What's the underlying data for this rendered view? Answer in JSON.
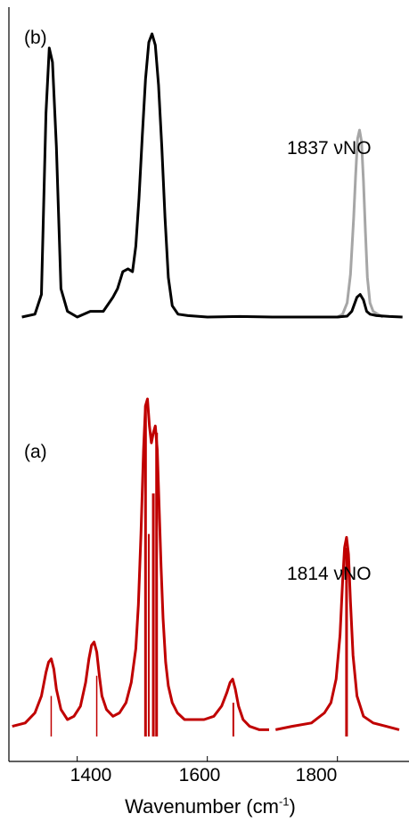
{
  "chart_data": [
    {
      "panel": "b",
      "type": "line",
      "panel_label": "(b)",
      "annotation": "1837 νNO",
      "xlabel_parts": [
        "Wavenumber (cm",
        "-1",
        ")"
      ],
      "xlim": [
        1295,
        1910
      ],
      "x_ticks": [
        1400,
        1600,
        1800
      ],
      "colors": {
        "main": "#000000",
        "overlay": "#a6a6a6"
      },
      "series": [
        {
          "role": "main",
          "x": [
            1315,
            1335,
            1345,
            1352,
            1357,
            1362,
            1368,
            1375,
            1385,
            1400,
            1420,
            1440,
            1455,
            1462,
            1470,
            1478,
            1485,
            1490,
            1495,
            1500,
            1505,
            1510,
            1515,
            1520,
            1525,
            1530,
            1535,
            1540,
            1546,
            1555,
            1570,
            1600,
            1650,
            1700,
            1750,
            1800,
            1815,
            1822,
            1830,
            1835,
            1840,
            1845,
            1850,
            1860,
            1880,
            1900
          ],
          "y": [
            0,
            0.01,
            0.08,
            0.72,
            0.95,
            0.9,
            0.6,
            0.1,
            0.02,
            0.0,
            0.02,
            0.02,
            0.07,
            0.1,
            0.16,
            0.17,
            0.16,
            0.25,
            0.42,
            0.64,
            0.84,
            0.97,
            1.0,
            0.96,
            0.82,
            0.6,
            0.35,
            0.14,
            0.04,
            0.01,
            0.005,
            0.0,
            0.002,
            0.0,
            0.0,
            0.0,
            0.003,
            0.02,
            0.07,
            0.08,
            0.06,
            0.02,
            0.01,
            0.005,
            0.002,
            0
          ]
        },
        {
          "role": "overlay",
          "x": [
            1800,
            1808,
            1815,
            1820,
            1825,
            1828,
            1831,
            1834,
            1837,
            1840,
            1843,
            1846,
            1850,
            1855,
            1862,
            1870
          ],
          "y": [
            0.0,
            0.01,
            0.05,
            0.15,
            0.35,
            0.5,
            0.63,
            0.66,
            0.62,
            0.48,
            0.3,
            0.14,
            0.05,
            0.02,
            0.01,
            0.0
          ]
        }
      ]
    },
    {
      "panel": "a",
      "type": "line",
      "panel_label": "(a)",
      "annotation": "1814 νNO",
      "xlim": [
        1295,
        1910
      ],
      "colors": {
        "main": "#c00000",
        "sticks": "#c00000"
      },
      "series": [
        {
          "role": "spectrum",
          "x": [
            1300,
            1320,
            1335,
            1345,
            1352,
            1356,
            1360,
            1364,
            1368,
            1375,
            1385,
            1395,
            1405,
            1413,
            1418,
            1422,
            1426,
            1430,
            1434,
            1438,
            1445,
            1455,
            1465,
            1475,
            1483,
            1490,
            1494,
            1498,
            1502,
            1505,
            1508,
            1511,
            1514,
            1517,
            1520,
            1523,
            1526,
            1529,
            1532,
            1536,
            1540,
            1546,
            1554,
            1565,
            1580,
            1595,
            1610,
            1622,
            1630,
            1635,
            1639,
            1643,
            1648,
            1655,
            1665,
            1680,
            1695
          ],
          "y": [
            0.03,
            0.04,
            0.07,
            0.12,
            0.19,
            0.22,
            0.23,
            0.2,
            0.14,
            0.08,
            0.05,
            0.06,
            0.09,
            0.16,
            0.23,
            0.27,
            0.28,
            0.25,
            0.18,
            0.12,
            0.08,
            0.06,
            0.07,
            0.1,
            0.16,
            0.26,
            0.39,
            0.6,
            0.85,
            0.98,
            1.0,
            0.92,
            0.87,
            0.9,
            0.92,
            0.85,
            0.68,
            0.5,
            0.35,
            0.22,
            0.15,
            0.1,
            0.07,
            0.05,
            0.05,
            0.05,
            0.06,
            0.09,
            0.13,
            0.16,
            0.17,
            0.14,
            0.09,
            0.05,
            0.03,
            0.02,
            0.02
          ]
        },
        {
          "role": "spectrum",
          "x": [
            1705,
            1730,
            1760,
            1780,
            1790,
            1798,
            1804,
            1808,
            1811,
            1814,
            1817,
            1820,
            1824,
            1830,
            1840,
            1855,
            1875,
            1895
          ],
          "y": [
            0.02,
            0.03,
            0.04,
            0.07,
            0.1,
            0.17,
            0.3,
            0.46,
            0.56,
            0.59,
            0.54,
            0.4,
            0.24,
            0.12,
            0.06,
            0.04,
            0.03,
            0.02
          ]
        }
      ],
      "sticks": [
        {
          "x": 1360,
          "y": 0.12,
          "w": 1.5
        },
        {
          "x": 1430,
          "y": 0.18,
          "w": 1.5
        },
        {
          "x": 1505,
          "y": 0.98,
          "w": 3
        },
        {
          "x": 1510,
          "y": 0.6,
          "w": 2
        },
        {
          "x": 1517,
          "y": 0.72,
          "w": 3
        },
        {
          "x": 1522,
          "y": 0.9,
          "w": 3
        },
        {
          "x": 1640,
          "y": 0.1,
          "w": 2
        },
        {
          "x": 1814,
          "y": 0.56,
          "w": 3
        }
      ]
    }
  ]
}
